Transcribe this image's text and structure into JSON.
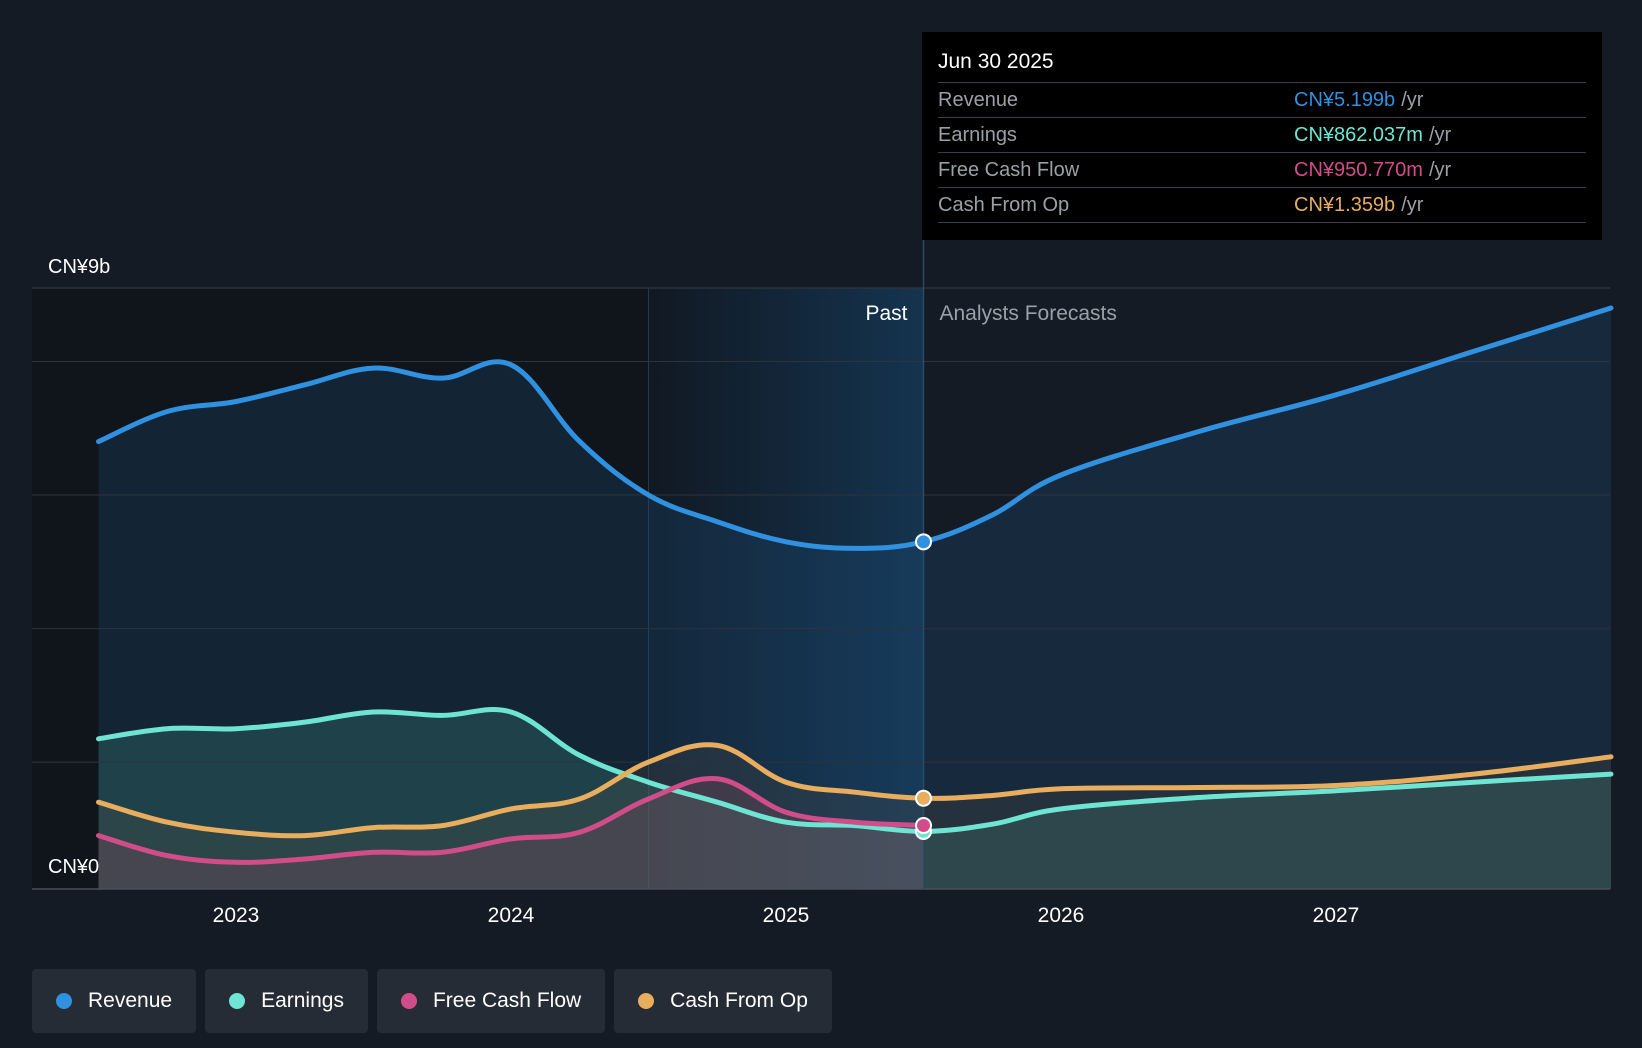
{
  "chart_data": {
    "type": "area",
    "title": "",
    "x_ticks": [
      2023,
      2024,
      2025,
      2026,
      2027
    ],
    "x_tick_labels": [
      "2023",
      "2024",
      "2025",
      "2026",
      "2027"
    ],
    "ylim": [
      0,
      9
    ],
    "y_unit": "CN¥b",
    "y_labels": {
      "top": "CN¥9b",
      "bottom": "CN¥0"
    },
    "past_label": "Past",
    "forecast_label": "Analysts Forecasts",
    "past_end": 2025.5,
    "highlight_start": 2024.5,
    "series": [
      {
        "name": "Revenue",
        "color": "#2f91e0",
        "points": [
          [
            2022.5,
            6.7
          ],
          [
            2022.75,
            7.15
          ],
          [
            2023.0,
            7.3
          ],
          [
            2023.25,
            7.55
          ],
          [
            2023.5,
            7.8
          ],
          [
            2023.75,
            7.65
          ],
          [
            2024.0,
            7.85
          ],
          [
            2024.25,
            6.7
          ],
          [
            2024.5,
            5.9
          ],
          [
            2024.75,
            5.5
          ],
          [
            2025.0,
            5.2
          ],
          [
            2025.25,
            5.1
          ],
          [
            2025.5,
            5.199
          ],
          [
            2025.75,
            5.6
          ],
          [
            2026.0,
            6.2
          ],
          [
            2026.5,
            6.85
          ],
          [
            2027.0,
            7.4
          ],
          [
            2027.5,
            8.05
          ],
          [
            2028.0,
            8.7
          ]
        ]
      },
      {
        "name": "Earnings",
        "color": "#6ee5d2",
        "points": [
          [
            2022.5,
            2.25
          ],
          [
            2022.75,
            2.4
          ],
          [
            2023.0,
            2.4
          ],
          [
            2023.25,
            2.5
          ],
          [
            2023.5,
            2.65
          ],
          [
            2023.75,
            2.6
          ],
          [
            2024.0,
            2.65
          ],
          [
            2024.25,
            2.0
          ],
          [
            2024.5,
            1.6
          ],
          [
            2024.75,
            1.3
          ],
          [
            2025.0,
            1.0
          ],
          [
            2025.25,
            0.95
          ],
          [
            2025.5,
            0.862
          ],
          [
            2025.75,
            0.97
          ],
          [
            2026.0,
            1.2
          ],
          [
            2026.5,
            1.37
          ],
          [
            2027.0,
            1.47
          ],
          [
            2027.5,
            1.6
          ],
          [
            2028.0,
            1.72
          ]
        ]
      },
      {
        "name": "Free Cash Flow",
        "color": "#d14d89",
        "points": [
          [
            2022.5,
            0.8
          ],
          [
            2022.75,
            0.5
          ],
          [
            2023.0,
            0.4
          ],
          [
            2023.25,
            0.45
          ],
          [
            2023.5,
            0.55
          ],
          [
            2023.75,
            0.55
          ],
          [
            2024.0,
            0.75
          ],
          [
            2024.25,
            0.85
          ],
          [
            2024.5,
            1.35
          ],
          [
            2024.75,
            1.65
          ],
          [
            2025.0,
            1.15
          ],
          [
            2025.25,
            1.0
          ],
          [
            2025.5,
            0.951
          ]
        ]
      },
      {
        "name": "Cash From Op",
        "color": "#e8ad5d",
        "points": [
          [
            2022.5,
            1.3
          ],
          [
            2022.75,
            1.0
          ],
          [
            2023.0,
            0.85
          ],
          [
            2023.25,
            0.8
          ],
          [
            2023.5,
            0.92
          ],
          [
            2023.75,
            0.95
          ],
          [
            2024.0,
            1.2
          ],
          [
            2024.25,
            1.35
          ],
          [
            2024.5,
            1.9
          ],
          [
            2024.75,
            2.15
          ],
          [
            2025.0,
            1.6
          ],
          [
            2025.25,
            1.45
          ],
          [
            2025.5,
            1.359
          ],
          [
            2025.75,
            1.4
          ],
          [
            2026.0,
            1.5
          ],
          [
            2026.5,
            1.52
          ],
          [
            2027.0,
            1.55
          ],
          [
            2027.5,
            1.72
          ],
          [
            2028.0,
            1.98
          ]
        ]
      }
    ]
  },
  "tooltip": {
    "date": "Jun 30 2025",
    "rows": [
      {
        "label": "Revenue",
        "value": "CN¥5.199b",
        "unit": "/yr",
        "color": "#2f91e0"
      },
      {
        "label": "Earnings",
        "value": "CN¥862.037m",
        "unit": "/yr",
        "color": "#6ee5d2"
      },
      {
        "label": "Free Cash Flow",
        "value": "CN¥950.770m",
        "unit": "/yr",
        "color": "#d14d89"
      },
      {
        "label": "Cash From Op",
        "value": "CN¥1.359b",
        "unit": "/yr",
        "color": "#e8ad5d"
      }
    ]
  },
  "legend": [
    {
      "label": "Revenue",
      "color": "#2f91e0"
    },
    {
      "label": "Earnings",
      "color": "#6ee5d2"
    },
    {
      "label": "Free Cash Flow",
      "color": "#d14d89"
    },
    {
      "label": "Cash From Op",
      "color": "#e8ad5d"
    }
  ]
}
